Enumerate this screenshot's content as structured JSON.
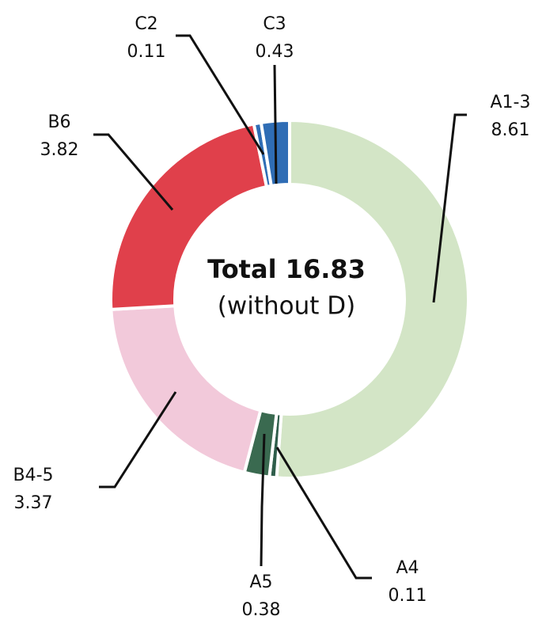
{
  "chart_data": {
    "type": "donut",
    "center_title": "Total 16.83",
    "center_subtitle": "(without D)",
    "categories": [
      "A1-3",
      "A4",
      "A5",
      "B4-5",
      "B6",
      "C2",
      "C3"
    ],
    "values": [
      8.61,
      0.11,
      0.38,
      3.37,
      3.82,
      0.11,
      0.43
    ],
    "colors": [
      "#d3e5c6",
      "#2f5e4b",
      "#3a6a50",
      "#f2c9da",
      "#e0404b",
      "#2f6db5",
      "#2f6db5"
    ]
  }
}
